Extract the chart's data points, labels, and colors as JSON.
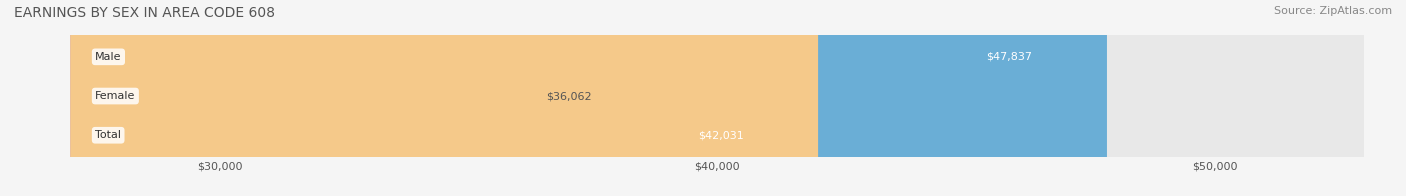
{
  "title": "EARNINGS BY SEX IN AREA CODE 608",
  "source": "Source: ZipAtlas.com",
  "categories": [
    "Male",
    "Female",
    "Total"
  ],
  "values": [
    47837,
    36062,
    42031
  ],
  "x_min": 27000,
  "x_max": 53000,
  "x_ticks": [
    30000,
    40000,
    50000
  ],
  "x_tick_labels": [
    "$30,000",
    "$40,000",
    "$50,000"
  ],
  "bar_colors": [
    "#6aaed6",
    "#f4a9c0",
    "#f5c98a"
  ],
  "bar_edge_colors": [
    "#5a9ec6",
    "#e499b0",
    "#e5b97a"
  ],
  "label_colors": [
    "#ffffff",
    "#555555",
    "#ffffff"
  ],
  "label_inside": [
    true,
    false,
    true
  ],
  "background_color": "#f5f5f5",
  "bar_bg_color": "#e8e8e8",
  "title_color": "#555555",
  "source_color": "#888888",
  "tick_label_color": "#555555",
  "category_label_color": "#333333",
  "figsize": [
    14.06,
    1.96
  ],
  "dpi": 100
}
